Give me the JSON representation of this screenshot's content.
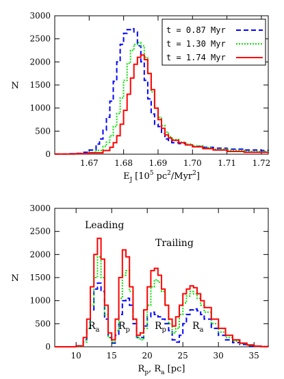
{
  "colors": {
    "s087": "#0000ff",
    "s130": "#00dd00",
    "s174": "#ff0000"
  },
  "chart_data": [
    {
      "type": "line",
      "step": true,
      "xlabel": "E_J [10^5 pc^2/Myr^2]",
      "xlabel_main": "E",
      "xlabel_sub": "J",
      "xlabel_pre": "[10",
      "xlabel_sup1": "5",
      "xlabel_mid": "pc",
      "xlabel_sup2": "2",
      "xlabel_mid2": "/Myr",
      "xlabel_sup3": "2",
      "xlabel_end": "]",
      "ylabel": "N",
      "xlim": [
        1.66,
        1.722
      ],
      "ylim": [
        0,
        3000
      ],
      "xticks": [
        1.67,
        1.68,
        1.69,
        1.7,
        1.71,
        1.72
      ],
      "xtick_labels": [
        "1.67",
        "1.68",
        "1.69",
        "1.70",
        "1.71",
        "1.72"
      ],
      "yticks": [
        0,
        500,
        1000,
        1500,
        2000,
        2500,
        3000
      ],
      "ytick_labels": [
        "0",
        "500",
        "1000",
        "1500",
        "2000",
        "2500",
        "3000"
      ],
      "legend_position": "top-right",
      "series": [
        {
          "name": "t = 0.87 Myr",
          "color_key": "s087",
          "style": "dashed",
          "x": [
            1.66,
            1.664,
            1.666,
            1.668,
            1.67,
            1.672,
            1.673,
            1.674,
            1.675,
            1.676,
            1.677,
            1.678,
            1.679,
            1.68,
            1.681,
            1.682,
            1.683,
            1.684,
            1.685,
            1.686,
            1.687,
            1.688,
            1.689,
            1.69,
            1.691,
            1.692,
            1.693,
            1.694,
            1.696,
            1.698,
            1.7,
            1.703,
            1.706,
            1.71,
            1.715,
            1.72,
            1.722
          ],
          "y": [
            5,
            10,
            20,
            40,
            90,
            220,
            330,
            520,
            800,
            1150,
            1580,
            2000,
            2380,
            2620,
            2700,
            2720,
            2650,
            2350,
            2000,
            1600,
            1200,
            870,
            650,
            600,
            450,
            330,
            280,
            250,
            230,
            200,
            170,
            150,
            130,
            110,
            90,
            80,
            70
          ]
        },
        {
          "name": "t = 1.30 Myr",
          "color_key": "s130",
          "style": "dotted",
          "x": [
            1.66,
            1.666,
            1.67,
            1.672,
            1.674,
            1.675,
            1.676,
            1.677,
            1.678,
            1.679,
            1.68,
            1.681,
            1.682,
            1.683,
            1.684,
            1.685,
            1.686,
            1.687,
            1.688,
            1.689,
            1.69,
            1.691,
            1.692,
            1.693,
            1.694,
            1.696,
            1.698,
            1.7,
            1.703,
            1.706,
            1.71,
            1.715,
            1.722
          ],
          "y": [
            5,
            15,
            40,
            80,
            170,
            260,
            400,
            600,
            880,
            1220,
            1600,
            1970,
            2250,
            2380,
            2420,
            2350,
            2100,
            1750,
            1350,
            1000,
            800,
            620,
            480,
            380,
            320,
            260,
            220,
            180,
            140,
            110,
            85,
            60,
            40
          ]
        },
        {
          "name": "t = 1.74 Myr",
          "color_key": "s174",
          "style": "solid",
          "x": [
            1.66,
            1.666,
            1.67,
            1.674,
            1.676,
            1.677,
            1.678,
            1.679,
            1.68,
            1.681,
            1.682,
            1.683,
            1.684,
            1.685,
            1.686,
            1.687,
            1.688,
            1.689,
            1.69,
            1.691,
            1.692,
            1.693,
            1.694,
            1.696,
            1.698,
            1.7,
            1.703,
            1.706,
            1.71,
            1.715,
            1.722
          ],
          "y": [
            5,
            10,
            30,
            80,
            150,
            250,
            400,
            650,
            950,
            1300,
            1650,
            1950,
            2100,
            2150,
            2050,
            1750,
            1400,
            1000,
            750,
            560,
            420,
            350,
            300,
            250,
            200,
            160,
            120,
            90,
            60,
            40,
            25
          ]
        }
      ]
    },
    {
      "type": "line",
      "step": true,
      "xlabel": "R_p, R_a [pc]",
      "ylabel": "N",
      "xlim": [
        7,
        37
      ],
      "ylim": [
        0,
        3000
      ],
      "xticks": [
        10,
        15,
        20,
        25,
        30,
        35
      ],
      "xtick_labels": [
        "10",
        "15",
        "20",
        "25",
        "30",
        "35"
      ],
      "yticks": [
        0,
        500,
        1000,
        1500,
        2000,
        2500,
        3000
      ],
      "ytick_labels": [
        "0",
        "500",
        "1000",
        "1500",
        "2000",
        "2500",
        "3000"
      ],
      "annotations": [
        "Leading",
        "Trailing",
        "R_a",
        "R_p",
        "R_p",
        "R_a"
      ],
      "series": [
        {
          "name": "t = 0.87 Myr",
          "color_key": "s087",
          "style": "dashed",
          "x": [
            7,
            9,
            10,
            11,
            11.5,
            12,
            12.5,
            13,
            13.5,
            14,
            14.5,
            15,
            15.5,
            16,
            16.5,
            17,
            17.5,
            18,
            18.5,
            19,
            19.5,
            20,
            20.5,
            21,
            21.5,
            22,
            22.5,
            23,
            23.5,
            24,
            24.5,
            25,
            25.5,
            26,
            26.5,
            27,
            27.5,
            28,
            29,
            30,
            31,
            32,
            33,
            34,
            35,
            36,
            37
          ],
          "y": [
            0,
            0,
            20,
            150,
            400,
            800,
            1250,
            1380,
            1200,
            600,
            200,
            80,
            250,
            700,
            1000,
            1050,
            900,
            500,
            200,
            200,
            450,
            650,
            750,
            700,
            650,
            600,
            500,
            350,
            150,
            100,
            250,
            500,
            700,
            800,
            820,
            780,
            700,
            600,
            400,
            250,
            150,
            90,
            50,
            20,
            10,
            5,
            0
          ]
        },
        {
          "name": "t = 1.30 Myr",
          "color_key": "s130",
          "style": "dotted",
          "x": [
            7,
            9,
            10,
            11,
            11.5,
            12,
            12.5,
            13,
            13.5,
            14,
            14.5,
            15,
            15.5,
            16,
            16.5,
            17,
            17.5,
            18,
            18.5,
            19,
            19.5,
            20,
            20.5,
            21,
            21.5,
            22,
            22.5,
            23,
            23.5,
            24,
            24.5,
            25,
            25.5,
            26,
            26.5,
            27,
            27.5,
            28,
            29,
            30,
            31,
            32,
            33,
            34,
            35,
            36,
            37
          ],
          "y": [
            0,
            0,
            10,
            100,
            400,
            900,
            1500,
            1950,
            1500,
            700,
            200,
            100,
            350,
            1050,
            1550,
            1650,
            1200,
            600,
            200,
            150,
            400,
            900,
            1300,
            1450,
            1400,
            1200,
            900,
            500,
            300,
            400,
            700,
            950,
            1100,
            1200,
            1150,
            1050,
            900,
            750,
            500,
            320,
            200,
            120,
            70,
            30,
            10,
            5,
            0
          ]
        },
        {
          "name": "t = 1.74 Myr",
          "color_key": "s174",
          "style": "solid",
          "x": [
            7,
            9,
            10,
            11,
            11.5,
            12,
            12.5,
            13,
            13.5,
            14,
            14.5,
            15,
            15.5,
            16,
            16.5,
            17,
            17.5,
            18,
            18.5,
            19,
            19.5,
            20,
            20.5,
            21,
            21.5,
            22,
            22.5,
            23,
            23.5,
            24,
            24.5,
            25,
            25.5,
            26,
            26.5,
            27,
            27.5,
            28,
            29,
            30,
            31,
            32,
            33,
            34,
            35,
            36,
            37
          ],
          "y": [
            0,
            0,
            20,
            200,
            600,
            1300,
            2000,
            2350,
            1900,
            900,
            300,
            150,
            600,
            1500,
            2100,
            1950,
            1300,
            600,
            250,
            300,
            800,
            1300,
            1650,
            1700,
            1550,
            1250,
            900,
            600,
            450,
            650,
            900,
            1150,
            1250,
            1320,
            1280,
            1150,
            1000,
            850,
            600,
            400,
            250,
            150,
            80,
            40,
            15,
            5,
            0
          ]
        }
      ]
    }
  ]
}
